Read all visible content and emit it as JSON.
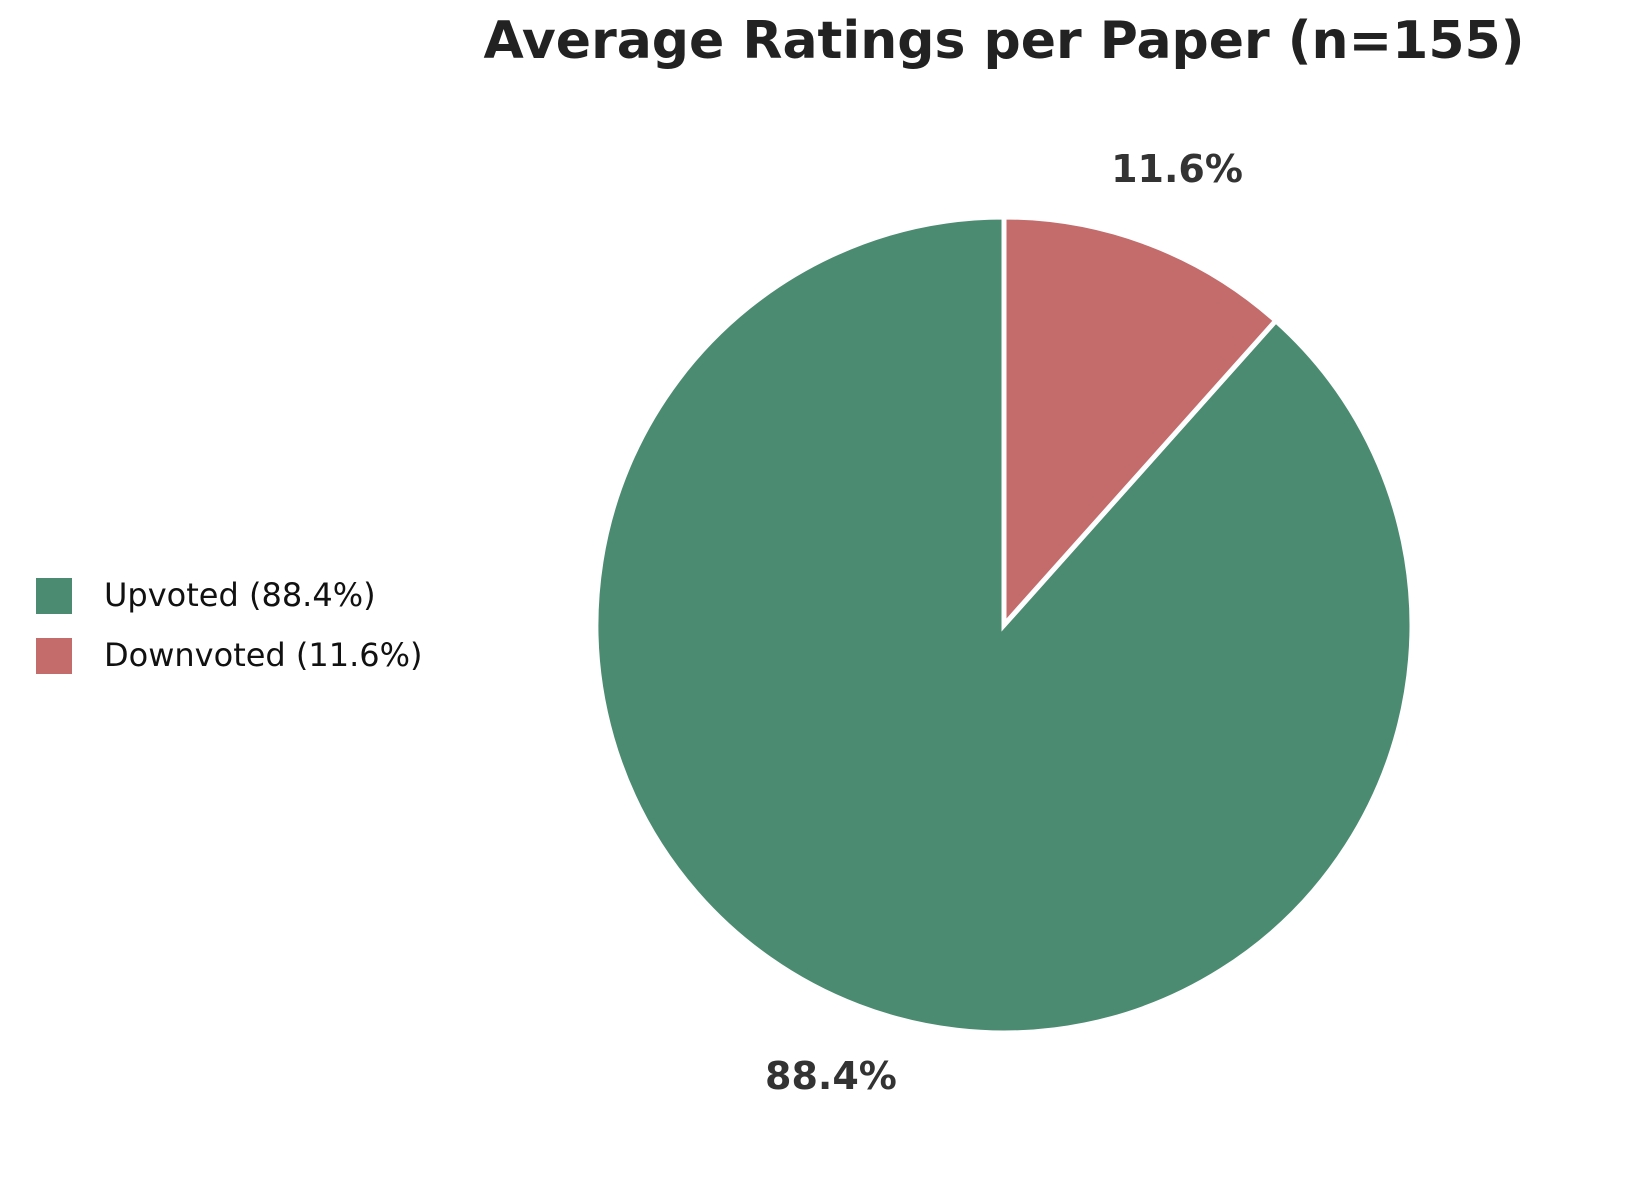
{
  "chart_data": {
    "type": "pie",
    "title": "Average Ratings per Paper  (n=155)",
    "categories": [
      "Upvoted",
      "Downvoted"
    ],
    "legend_labels": [
      "Upvoted  (88.4%)",
      "Downvoted  (11.6%)"
    ],
    "values": [
      88.4,
      11.6
    ],
    "value_labels": [
      "88.4%",
      "11.6%"
    ],
    "colors": [
      "#4b8b71",
      "#c46b6b"
    ],
    "start_angle": 90,
    "legend": "left"
  }
}
